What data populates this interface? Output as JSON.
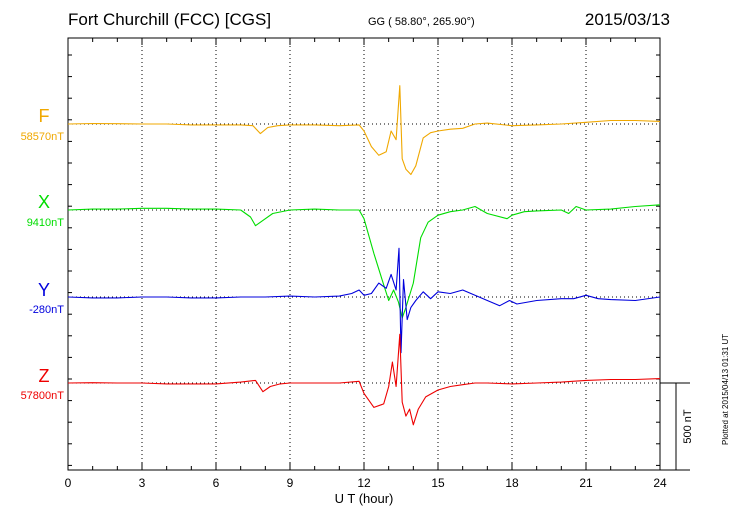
{
  "header": {
    "station": "Fort Churchill (FCC)  [CGS]",
    "coords": "GG ( 58.80°, 265.90°)",
    "date": "2015/03/13"
  },
  "footer_note": "Plotted at 2015/04/13 01:31  UT",
  "chart_data": {
    "type": "line",
    "xlabel": "U T (hour)",
    "xlim": [
      0,
      24
    ],
    "xticks": [
      "0",
      "3",
      "6",
      "9",
      "12",
      "15",
      "18",
      "21",
      "24"
    ],
    "scale_bar": {
      "label": "500 nT",
      "value_nT": 500
    },
    "grid": true,
    "series": [
      {
        "name": "F",
        "baseline": "58570nT",
        "color": "#f0a800",
        "x": [
          0,
          1,
          2,
          3,
          4,
          5,
          6,
          7,
          7.5,
          7.8,
          8.1,
          8.5,
          9,
          10,
          11,
          11.8,
          12,
          12.3,
          12.6,
          12.9,
          13.1,
          13.3,
          13.45,
          13.55,
          13.7,
          13.9,
          14.1,
          14.4,
          14.7,
          15,
          15.5,
          16,
          16.5,
          17,
          18,
          19,
          20,
          21,
          22,
          23,
          24
        ],
        "y": [
          0,
          3,
          2,
          0,
          0,
          -5,
          -5,
          -5,
          -10,
          -55,
          -20,
          -10,
          -5,
          -5,
          -10,
          -5,
          -40,
          -130,
          -180,
          -160,
          -40,
          -90,
          220,
          -200,
          -260,
          -290,
          -240,
          -80,
          -50,
          -40,
          -30,
          -25,
          0,
          5,
          -10,
          -5,
          0,
          10,
          20,
          20,
          15
        ]
      },
      {
        "name": "X",
        "baseline": "9410nT",
        "color": "#00dd00",
        "x": [
          0,
          1,
          2,
          3,
          4,
          5,
          6,
          7,
          7.4,
          7.6,
          7.9,
          8.3,
          9,
          10,
          11,
          11.8,
          12,
          12.4,
          12.8,
          13,
          13.2,
          13.4,
          13.55,
          13.7,
          14,
          14.3,
          14.6,
          15,
          15.5,
          16,
          16.5,
          17,
          17.8,
          18,
          18.5,
          19,
          20,
          20.3,
          20.6,
          21,
          22,
          23,
          24
        ],
        "y": [
          0,
          5,
          5,
          10,
          10,
          5,
          5,
          0,
          -40,
          -90,
          -60,
          -20,
          0,
          5,
          0,
          0,
          -50,
          -250,
          -430,
          -520,
          -460,
          -530,
          -620,
          -560,
          -420,
          -160,
          -70,
          -30,
          -10,
          0,
          20,
          -20,
          -50,
          -30,
          -10,
          -5,
          0,
          -20,
          20,
          0,
          5,
          20,
          30
        ]
      },
      {
        "name": "Y",
        "baseline": "-280nT",
        "color": "#0000dd",
        "x": [
          0,
          1,
          2,
          3,
          4,
          5,
          6,
          7,
          8,
          9,
          10,
          11,
          11.5,
          11.8,
          12,
          12.3,
          12.6,
          12.9,
          13.1,
          13.3,
          13.42,
          13.5,
          13.6,
          13.75,
          13.9,
          14.1,
          14.4,
          14.7,
          15,
          15.5,
          16,
          16.5,
          17,
          17.5,
          17.9,
          18.2,
          19,
          20,
          20.5,
          21,
          21.5,
          22,
          23,
          24
        ],
        "y": [
          0,
          -5,
          -5,
          0,
          0,
          -5,
          -5,
          0,
          0,
          5,
          0,
          5,
          20,
          40,
          10,
          20,
          80,
          50,
          130,
          40,
          280,
          -320,
          100,
          -130,
          -60,
          -20,
          30,
          -10,
          30,
          20,
          40,
          10,
          -20,
          -50,
          -20,
          -40,
          -20,
          -10,
          -10,
          10,
          -10,
          -15,
          -20,
          0
        ]
      },
      {
        "name": "Z",
        "baseline": "57800nT",
        "color": "#ee0000",
        "x": [
          0,
          1,
          2,
          3,
          4,
          5,
          6,
          7,
          7.6,
          7.9,
          8.2,
          8.6,
          9,
          10,
          11,
          11.8,
          12,
          12.4,
          12.8,
          13,
          13.15,
          13.3,
          13.45,
          13.55,
          13.7,
          13.85,
          14,
          14.2,
          14.5,
          15,
          15.5,
          16,
          16.5,
          17,
          18,
          19,
          20,
          21,
          22,
          23,
          24
        ],
        "y": [
          0,
          2,
          0,
          0,
          -5,
          -5,
          -5,
          5,
          15,
          -50,
          -20,
          -5,
          0,
          0,
          0,
          10,
          -60,
          -140,
          -120,
          -20,
          120,
          -20,
          280,
          -110,
          -190,
          -150,
          -240,
          -150,
          -80,
          -40,
          -20,
          -10,
          0,
          0,
          -5,
          0,
          5,
          15,
          20,
          20,
          25
        ]
      }
    ]
  }
}
